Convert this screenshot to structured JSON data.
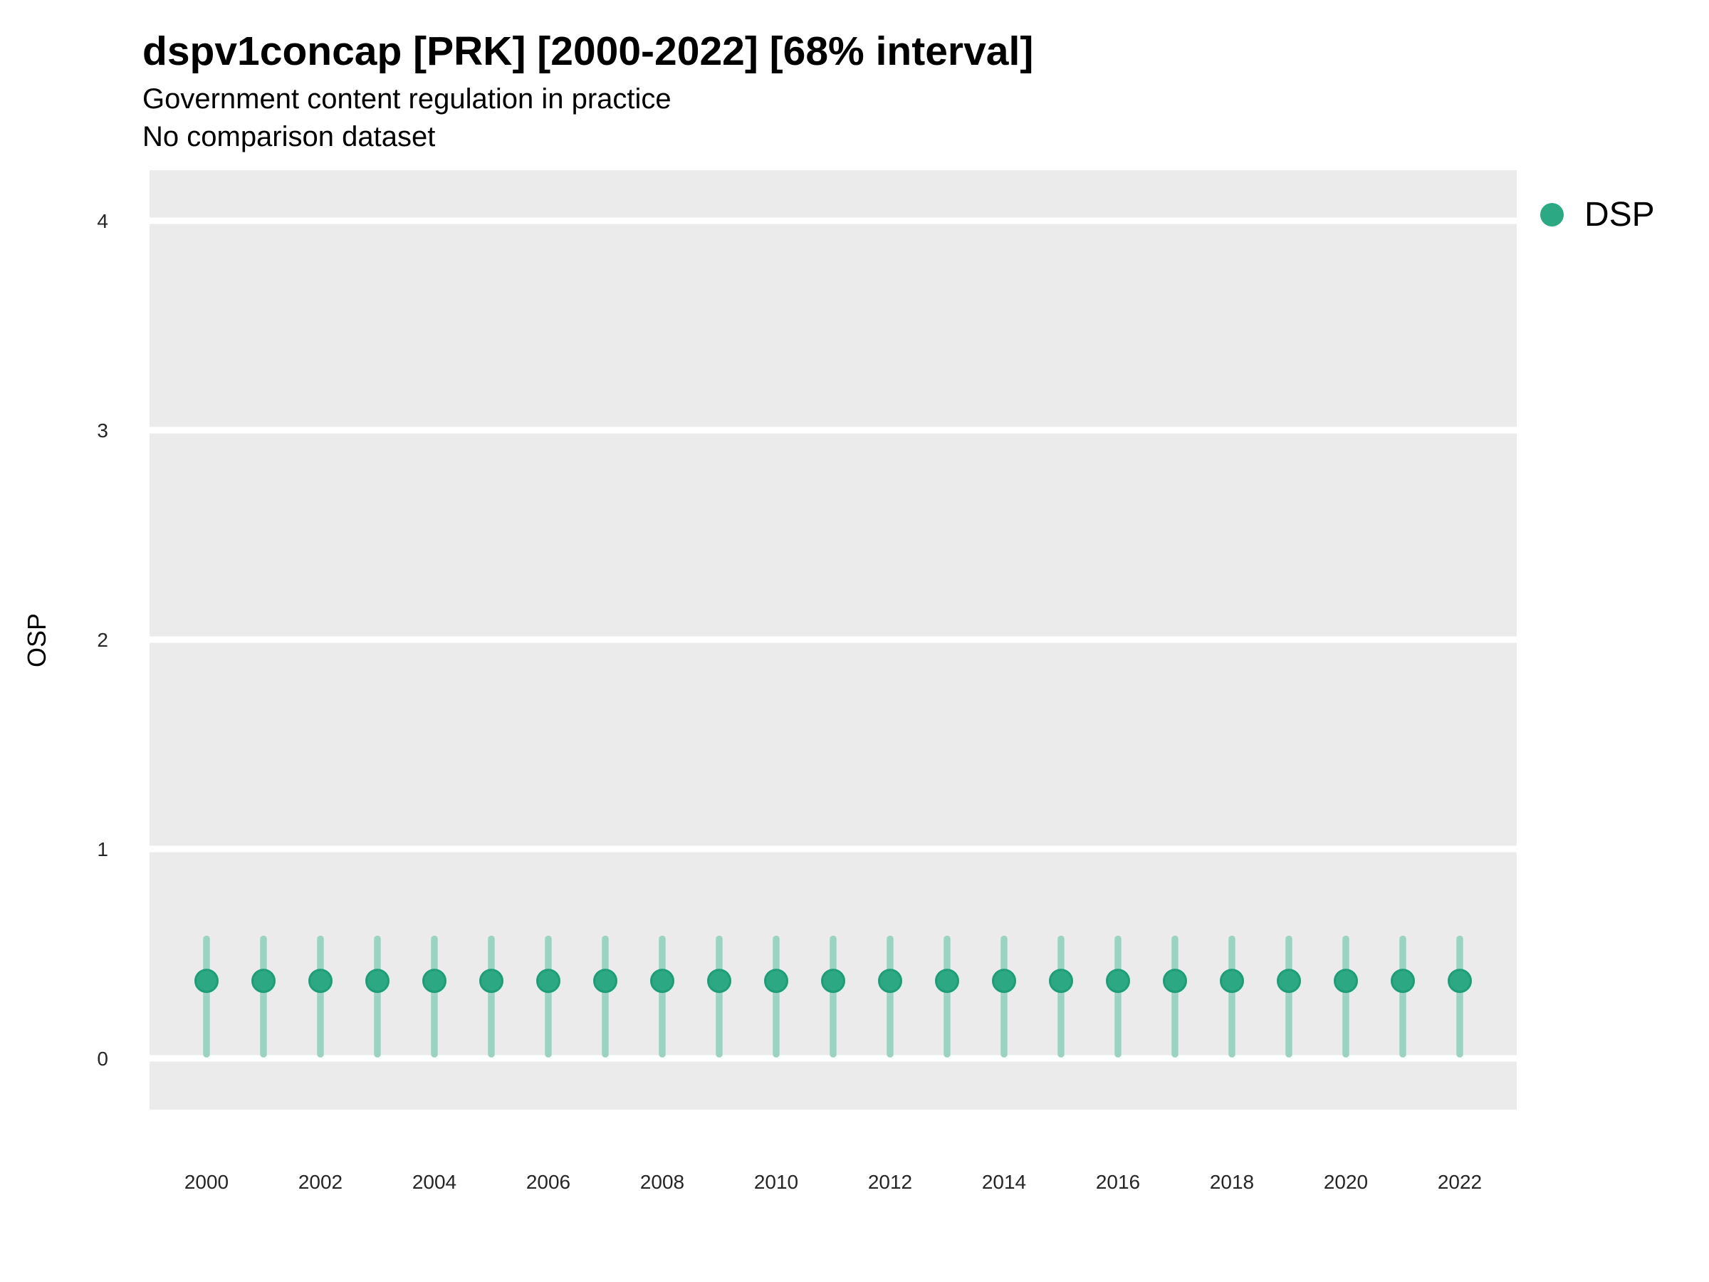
{
  "header": {
    "title": "dspv1concap [PRK] [2000-2022] [68% interval]",
    "subtitle": "Government content regulation in practice",
    "note": "No comparison dataset"
  },
  "legend": {
    "position": "right",
    "items": [
      {
        "label": "DSP",
        "color": "#2CA883"
      }
    ]
  },
  "colors": {
    "panel_bg": "#EBEBEB",
    "gridline": "#FFFFFF",
    "interval": "#9AD3C1",
    "point_fill": "#2CA883",
    "point_stroke": "#1E9E76",
    "tick_text": "#262626",
    "text": "#000000"
  },
  "chart_data": {
    "type": "pointrange",
    "title": "dspv1concap [PRK] [2000-2022] [68% interval]",
    "subtitle": "Government content regulation in practice",
    "note": "No comparison dataset",
    "xlabel": "",
    "ylabel": "OSP",
    "xlim": [
      1999,
      2023
    ],
    "ylim": [
      -0.245,
      4.2415
    ],
    "grid": "major-horizontal-white",
    "legend_position": "right",
    "x_ticks": [
      2000,
      2002,
      2004,
      2006,
      2008,
      2010,
      2012,
      2014,
      2016,
      2018,
      2020,
      2022
    ],
    "y_ticks": [
      0,
      1,
      2,
      3,
      4
    ],
    "x": [
      2000,
      2001,
      2002,
      2003,
      2004,
      2005,
      2006,
      2007,
      2008,
      2009,
      2010,
      2011,
      2012,
      2013,
      2014,
      2015,
      2016,
      2017,
      2018,
      2019,
      2020,
      2021,
      2022
    ],
    "series": [
      {
        "name": "DSP",
        "point": [
          0.37,
          0.37,
          0.37,
          0.37,
          0.37,
          0.37,
          0.37,
          0.37,
          0.37,
          0.37,
          0.37,
          0.37,
          0.37,
          0.37,
          0.37,
          0.37,
          0.37,
          0.37,
          0.37,
          0.37,
          0.37,
          0.37,
          0.37
        ],
        "low": [
          0.02,
          0.02,
          0.02,
          0.02,
          0.02,
          0.02,
          0.02,
          0.02,
          0.02,
          0.02,
          0.02,
          0.02,
          0.02,
          0.02,
          0.02,
          0.02,
          0.02,
          0.02,
          0.02,
          0.02,
          0.02,
          0.02,
          0.02
        ],
        "high": [
          0.57,
          0.57,
          0.57,
          0.57,
          0.57,
          0.57,
          0.57,
          0.57,
          0.57,
          0.57,
          0.57,
          0.57,
          0.57,
          0.57,
          0.57,
          0.57,
          0.57,
          0.57,
          0.57,
          0.57,
          0.57,
          0.57,
          0.57
        ]
      }
    ]
  }
}
